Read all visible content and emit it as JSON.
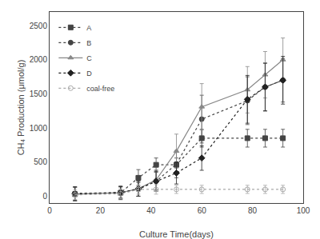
{
  "chart_data": {
    "type": "line",
    "xlabel": "Culture Time(days)",
    "ylabel": "CH₄ Production (μmol/g)",
    "x": [
      10,
      28,
      35,
      42,
      50,
      60,
      78,
      85,
      92
    ],
    "xlim": [
      0,
      100
    ],
    "ylim": [
      -100,
      2700
    ],
    "xticks": [
      0,
      20,
      40,
      60,
      80,
      100
    ],
    "yticks": [
      0,
      500,
      1000,
      1500,
      2000,
      2500
    ],
    "grid": false,
    "legend": "upper left",
    "series": [
      {
        "name": "A",
        "color": "#444444",
        "marker": "square",
        "line_style": "dotted",
        "values": [
          30,
          50,
          270,
          460,
          460,
          850,
          850,
          850,
          850
        ],
        "errors": [
          100,
          100,
          120,
          100,
          100,
          130,
          130,
          130,
          130
        ]
      },
      {
        "name": "B",
        "color": "#444444",
        "marker": "circle",
        "line_style": "dotted",
        "values": [
          40,
          55,
          100,
          220,
          470,
          1130,
          1400,
          1600,
          1700
        ],
        "errors": [
          100,
          80,
          100,
          130,
          200,
          350,
          350,
          350,
          320
        ]
      },
      {
        "name": "C",
        "color": "#888888",
        "marker": "triangle-up",
        "line_style": "solid",
        "values": [
          30,
          50,
          110,
          240,
          660,
          1310,
          1560,
          1780,
          2000
        ],
        "errors": [
          100,
          90,
          110,
          150,
          250,
          340,
          340,
          340,
          320
        ]
      },
      {
        "name": "D",
        "color": "#222222",
        "marker": "diamond",
        "line_style": "dotted",
        "values": [
          35,
          50,
          110,
          220,
          340,
          560,
          1420,
          1600,
          1700
        ],
        "errors": [
          100,
          90,
          110,
          150,
          160,
          180,
          350,
          350,
          350
        ]
      },
      {
        "name": "coal-free",
        "color": "#aaaaaa",
        "marker": "circle-open",
        "line_style": "dotted",
        "values": [
          20,
          35,
          100,
          100,
          100,
          100,
          100,
          100,
          100
        ],
        "errors": [
          70,
          70,
          70,
          70,
          60,
          60,
          60,
          60,
          60
        ]
      }
    ]
  }
}
